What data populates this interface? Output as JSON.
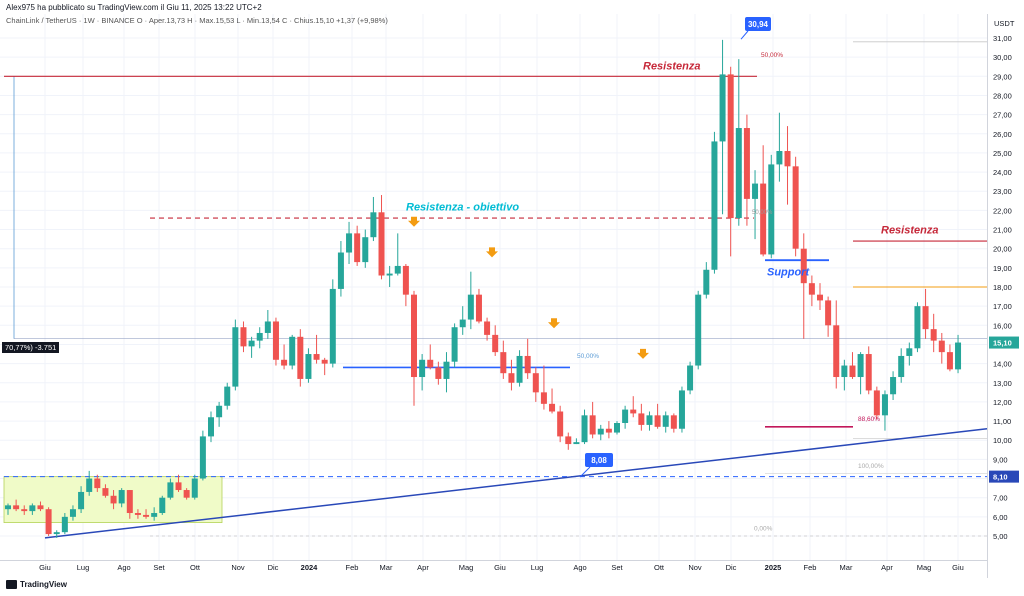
{
  "header": {
    "publisher": "Alex975 ha pubblicato su TradingView.com il Giu 11, 2025 13:22 UTC+2",
    "symbol_line": "ChainLink / TetherUS · 1W · BINANCE   O · Aper.13,73   H · Max.15,53   L · Min.13,54   C · Chius.15,10   +1,37 (+9,98%)",
    "currency": "USDT",
    "left_badge": "70,77%) -3.751"
  },
  "footer": {
    "brand": "TradingView"
  },
  "colors": {
    "up": "#26a69a",
    "down": "#ef5350",
    "resistance": "#c62839",
    "resistance_target": "#00bcd4",
    "support": "#2962ff",
    "trend": "#2948b8",
    "orange": "#f39c12",
    "magenta": "#c2185b",
    "zone": "#f0fbc8"
  },
  "annotations": {
    "res1": "Resistenza",
    "res_target": "Resistenza - obiettivo",
    "res2": "Resistenza",
    "support": "Support",
    "pct50_top": "50,00%",
    "pct50_mid": "50,00%",
    "pct50_dec": "50,00%",
    "pct886": "88,60%",
    "pct100": "100,00%",
    "pct0": "0,00%",
    "high_label": "30,94",
    "low_label": "8,08",
    "price_now": "15,10",
    "price_low_tag": "8,10"
  },
  "chart_data": {
    "type": "candlestick",
    "title": "ChainLink / TetherUS · 1W · BINANCE",
    "ylabel": "USDT",
    "ylim": [
      4.0,
      32.0
    ],
    "y_ticks": [
      "5,00",
      "6,00",
      "7,00",
      "8,00",
      "9,00",
      "10,00",
      "11,00",
      "12,00",
      "13,00",
      "14,00",
      "15,00",
      "16,00",
      "17,00",
      "18,00",
      "19,00",
      "20,00",
      "21,00",
      "22,00",
      "23,00",
      "24,00",
      "25,00",
      "26,00",
      "27,00",
      "28,00",
      "29,00",
      "30,00",
      "31,00"
    ],
    "x_labels": [
      "Giu",
      "Lug",
      "Ago",
      "Set",
      "Ott",
      "Nov",
      "Dic",
      "2024",
      "Feb",
      "Mar",
      "Apr",
      "Mag",
      "Giu",
      "Lug",
      "Ago",
      "Set",
      "Ott",
      "Nov",
      "Dic",
      "2025",
      "Feb",
      "Mar",
      "Apr",
      "Mag",
      "Giu"
    ],
    "candles": [
      [
        6.4,
        6.7,
        6.1,
        6.6
      ],
      [
        6.6,
        6.9,
        6.3,
        6.4
      ],
      [
        6.4,
        6.6,
        6.1,
        6.3
      ],
      [
        6.3,
        6.7,
        6.1,
        6.6
      ],
      [
        6.6,
        6.8,
        6.3,
        6.4
      ],
      [
        6.4,
        6.5,
        5.0,
        5.1
      ],
      [
        5.1,
        5.3,
        4.9,
        5.2
      ],
      [
        5.2,
        6.2,
        5.1,
        6.0
      ],
      [
        6.0,
        6.6,
        5.8,
        6.4
      ],
      [
        6.4,
        7.6,
        6.2,
        7.3
      ],
      [
        7.3,
        8.4,
        7.1,
        8.0
      ],
      [
        8.0,
        8.2,
        7.3,
        7.5
      ],
      [
        7.5,
        7.7,
        7.0,
        7.1
      ],
      [
        7.1,
        7.4,
        6.4,
        6.7
      ],
      [
        6.7,
        7.5,
        6.5,
        7.4
      ],
      [
        7.4,
        7.4,
        5.9,
        6.2
      ],
      [
        6.2,
        6.4,
        5.9,
        6.1
      ],
      [
        6.1,
        6.4,
        5.9,
        6.0
      ],
      [
        6.0,
        6.5,
        5.8,
        6.2
      ],
      [
        6.2,
        7.1,
        6.1,
        7.0
      ],
      [
        7.0,
        8.0,
        6.9,
        7.8
      ],
      [
        7.8,
        8.2,
        7.3,
        7.4
      ],
      [
        7.4,
        7.5,
        6.9,
        7.0
      ],
      [
        7.0,
        8.2,
        6.9,
        8.0
      ],
      [
        8.0,
        10.5,
        7.9,
        10.2
      ],
      [
        10.2,
        11.5,
        9.9,
        11.2
      ],
      [
        11.2,
        12.0,
        10.7,
        11.8
      ],
      [
        11.8,
        13.0,
        11.6,
        12.8
      ],
      [
        12.8,
        16.3,
        12.6,
        15.9
      ],
      [
        15.9,
        16.2,
        14.6,
        14.9
      ],
      [
        14.9,
        15.4,
        14.3,
        15.2
      ],
      [
        15.2,
        15.9,
        14.8,
        15.6
      ],
      [
        15.6,
        16.8,
        15.3,
        16.2
      ],
      [
        16.2,
        16.4,
        13.9,
        14.2
      ],
      [
        14.2,
        15.0,
        13.7,
        13.9
      ],
      [
        13.9,
        15.5,
        13.7,
        15.4
      ],
      [
        15.4,
        15.8,
        12.8,
        13.2
      ],
      [
        13.2,
        14.8,
        13.0,
        14.5
      ],
      [
        14.5,
        15.5,
        14.0,
        14.2
      ],
      [
        14.2,
        14.3,
        13.4,
        14.0
      ],
      [
        14.0,
        18.4,
        13.8,
        17.9
      ],
      [
        17.9,
        20.4,
        17.5,
        19.8
      ],
      [
        19.8,
        21.4,
        19.2,
        20.8
      ],
      [
        20.8,
        21.2,
        19.1,
        19.3
      ],
      [
        19.3,
        21.0,
        19.0,
        20.6
      ],
      [
        20.6,
        22.7,
        20.4,
        21.9
      ],
      [
        21.9,
        22.8,
        18.4,
        18.6
      ],
      [
        18.6,
        19.1,
        18.0,
        18.7
      ],
      [
        18.7,
        20.8,
        18.6,
        19.1
      ],
      [
        19.1,
        19.2,
        17.0,
        17.6
      ],
      [
        17.6,
        17.8,
        11.8,
        13.3
      ],
      [
        13.3,
        14.5,
        12.6,
        14.2
      ],
      [
        14.2,
        15.0,
        13.7,
        13.8
      ],
      [
        13.8,
        14.1,
        12.9,
        13.2
      ],
      [
        13.2,
        14.6,
        12.5,
        14.1
      ],
      [
        14.1,
        16.1,
        13.8,
        15.9
      ],
      [
        15.9,
        17.0,
        15.5,
        16.3
      ],
      [
        16.3,
        18.8,
        15.8,
        17.6
      ],
      [
        17.6,
        17.9,
        16.1,
        16.2
      ],
      [
        16.2,
        16.4,
        15.2,
        15.5
      ],
      [
        15.5,
        16.0,
        14.4,
        14.6
      ],
      [
        14.6,
        15.2,
        13.2,
        13.5
      ],
      [
        13.5,
        14.2,
        12.6,
        13.0
      ],
      [
        13.0,
        14.7,
        12.8,
        14.4
      ],
      [
        14.4,
        15.3,
        13.2,
        13.5
      ],
      [
        13.5,
        13.8,
        12.0,
        12.5
      ],
      [
        12.5,
        13.9,
        11.6,
        11.9
      ],
      [
        11.9,
        12.7,
        11.4,
        11.5
      ],
      [
        11.5,
        11.8,
        9.9,
        10.2
      ],
      [
        10.2,
        10.4,
        9.5,
        9.8
      ],
      [
        9.8,
        10.1,
        9.8,
        9.9
      ],
      [
        9.9,
        11.6,
        9.8,
        11.3
      ],
      [
        11.3,
        12.0,
        10.1,
        10.3
      ],
      [
        10.3,
        10.8,
        10.0,
        10.6
      ],
      [
        10.6,
        11.0,
        10.1,
        10.4
      ],
      [
        10.4,
        11.0,
        10.3,
        10.9
      ],
      [
        10.9,
        11.8,
        10.6,
        11.6
      ],
      [
        11.6,
        12.3,
        11.2,
        11.4
      ],
      [
        11.4,
        11.9,
        10.5,
        10.8
      ],
      [
        10.8,
        11.5,
        10.5,
        11.3
      ],
      [
        11.3,
        11.9,
        10.6,
        10.7
      ],
      [
        10.7,
        11.5,
        10.4,
        11.3
      ],
      [
        11.3,
        11.4,
        10.4,
        10.6
      ],
      [
        10.6,
        12.8,
        10.4,
        12.6
      ],
      [
        12.6,
        14.1,
        12.4,
        13.9
      ],
      [
        13.9,
        17.8,
        13.7,
        17.6
      ],
      [
        17.6,
        19.3,
        17.4,
        18.9
      ],
      [
        18.9,
        26.1,
        18.7,
        25.6
      ],
      [
        25.6,
        30.9,
        21.8,
        29.1
      ],
      [
        29.1,
        29.5,
        19.6,
        21.6
      ],
      [
        21.6,
        29.9,
        21.2,
        26.3
      ],
      [
        26.3,
        27.0,
        21.2,
        22.6
      ],
      [
        22.6,
        24.1,
        20.5,
        23.4
      ],
      [
        23.4,
        25.4,
        19.6,
        19.7
      ],
      [
        19.7,
        24.9,
        19.5,
        24.4
      ],
      [
        24.4,
        27.1,
        23.5,
        25.1
      ],
      [
        25.1,
        26.4,
        22.3,
        24.3
      ],
      [
        24.3,
        24.8,
        19.6,
        20.0
      ],
      [
        20.0,
        20.8,
        15.3,
        18.2
      ],
      [
        18.2,
        18.6,
        17.0,
        17.6
      ],
      [
        17.6,
        18.2,
        16.8,
        17.3
      ],
      [
        17.3,
        17.5,
        15.4,
        16.0
      ],
      [
        16.0,
        17.3,
        12.7,
        13.3
      ],
      [
        13.3,
        14.2,
        12.6,
        13.9
      ],
      [
        13.9,
        14.6,
        13.2,
        13.3
      ],
      [
        13.3,
        14.6,
        12.4,
        14.5
      ],
      [
        14.5,
        14.9,
        12.4,
        12.6
      ],
      [
        12.6,
        12.8,
        11.1,
        11.3
      ],
      [
        11.3,
        12.6,
        10.5,
        12.4
      ],
      [
        12.4,
        13.6,
        12.1,
        13.3
      ],
      [
        13.3,
        14.8,
        13.0,
        14.4
      ],
      [
        14.4,
        15.1,
        13.9,
        14.8
      ],
      [
        14.8,
        17.2,
        14.6,
        17.0
      ],
      [
        17.0,
        17.9,
        15.3,
        15.8
      ],
      [
        15.8,
        16.6,
        14.6,
        15.2
      ],
      [
        15.2,
        15.6,
        14.0,
        14.6
      ],
      [
        14.6,
        15.0,
        13.6,
        13.7
      ],
      [
        13.7,
        15.5,
        13.5,
        15.1
      ]
    ],
    "horizontal_levels": [
      {
        "label": "Resistenza",
        "value": 29.0
      },
      {
        "label": "Resistenza - obiettivo",
        "value": 21.6
      },
      {
        "label": "Resistenza",
        "value": 20.4
      },
      {
        "label": "Support",
        "value": 19.4
      },
      {
        "label": "50,00%",
        "value": 13.8
      },
      {
        "label": "88,60%",
        "value": 10.6
      },
      {
        "label": "8,10",
        "value": 8.1
      }
    ],
    "grid": true
  }
}
